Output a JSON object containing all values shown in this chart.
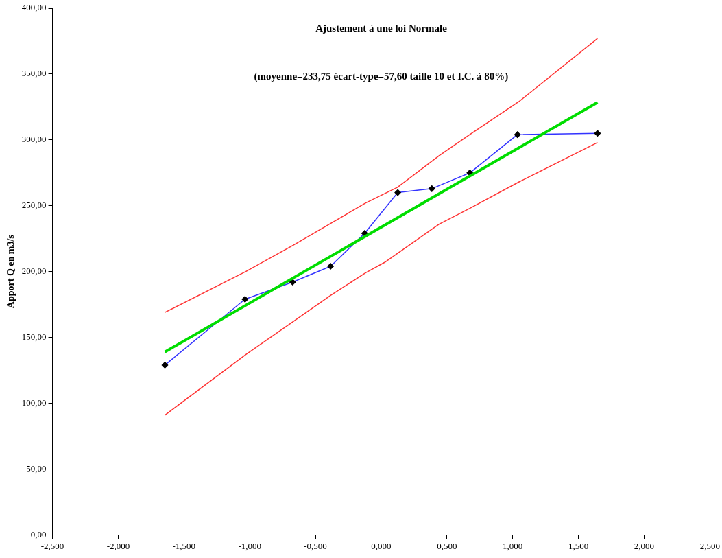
{
  "chart_data": {
    "type": "line",
    "title": "Ajustement à une loi Normale",
    "subtitle": "(moyenne=233,75 écart-type=57,60 taille 10 et I.C. à 80%)",
    "ylabel": "Apport Q en m3/s",
    "xlim": [
      -2.5,
      2.5
    ],
    "ylim": [
      0,
      400
    ],
    "xticks": [
      {
        "value": -2.5,
        "label": "-2,500"
      },
      {
        "value": -2,
        "label": "-2,000"
      },
      {
        "value": -1.5,
        "label": "-1,500"
      },
      {
        "value": -1,
        "label": "-1,000"
      },
      {
        "value": -0.5,
        "label": "-0,500"
      },
      {
        "value": 0,
        "label": "0,000"
      },
      {
        "value": 0.5,
        "label": "0,500"
      },
      {
        "value": 1,
        "label": "1,000"
      },
      {
        "value": 1.5,
        "label": "1,500"
      },
      {
        "value": 2,
        "label": "2,000"
      },
      {
        "value": 2.5,
        "label": "2,500"
      }
    ],
    "yticks": [
      {
        "value": 0,
        "label": "0,00"
      },
      {
        "value": 50,
        "label": "50,00"
      },
      {
        "value": 100,
        "label": "100,00"
      },
      {
        "value": 150,
        "label": "150,00"
      },
      {
        "value": 200,
        "label": "200,00"
      },
      {
        "value": 250,
        "label": "250,00"
      },
      {
        "value": 300,
        "label": "300,00"
      },
      {
        "value": 350,
        "label": "350,00"
      },
      {
        "value": 400,
        "label": "400,00"
      }
    ],
    "grid": false,
    "legend": false,
    "series": [
      {
        "color": "#ff3333",
        "marker": "none",
        "x": [
          -1.645,
          -1.03,
          -0.67,
          -0.12,
          0.124,
          0.44,
          0.673,
          1.046,
          1.645
        ],
        "values": [
          169,
          200,
          220,
          252,
          264,
          288,
          304,
          329,
          377
        ]
      },
      {
        "color": "#ff3333",
        "marker": "none",
        "x": [
          -1.645,
          -1.03,
          -0.67,
          -0.383,
          -0.12,
          0.026,
          0.44,
          0.673,
          1.046,
          1.645
        ],
        "values": [
          91,
          137,
          162,
          182,
          199,
          207,
          236,
          248,
          268,
          298
        ]
      },
      {
        "color": "#3333ff",
        "marker": "diamond",
        "x": [
          -1.645,
          -1.036,
          -0.674,
          -0.385,
          -0.126,
          0.126,
          0.385,
          0.674,
          1.036,
          1.645
        ],
        "values": [
          129,
          179,
          192,
          204,
          229,
          260,
          263,
          275,
          304,
          305
        ]
      },
      {
        "color": "#00dd00",
        "marker": "none",
        "x": [
          -1.645,
          1.645
        ],
        "values": [
          139,
          328.5
        ]
      }
    ]
  }
}
